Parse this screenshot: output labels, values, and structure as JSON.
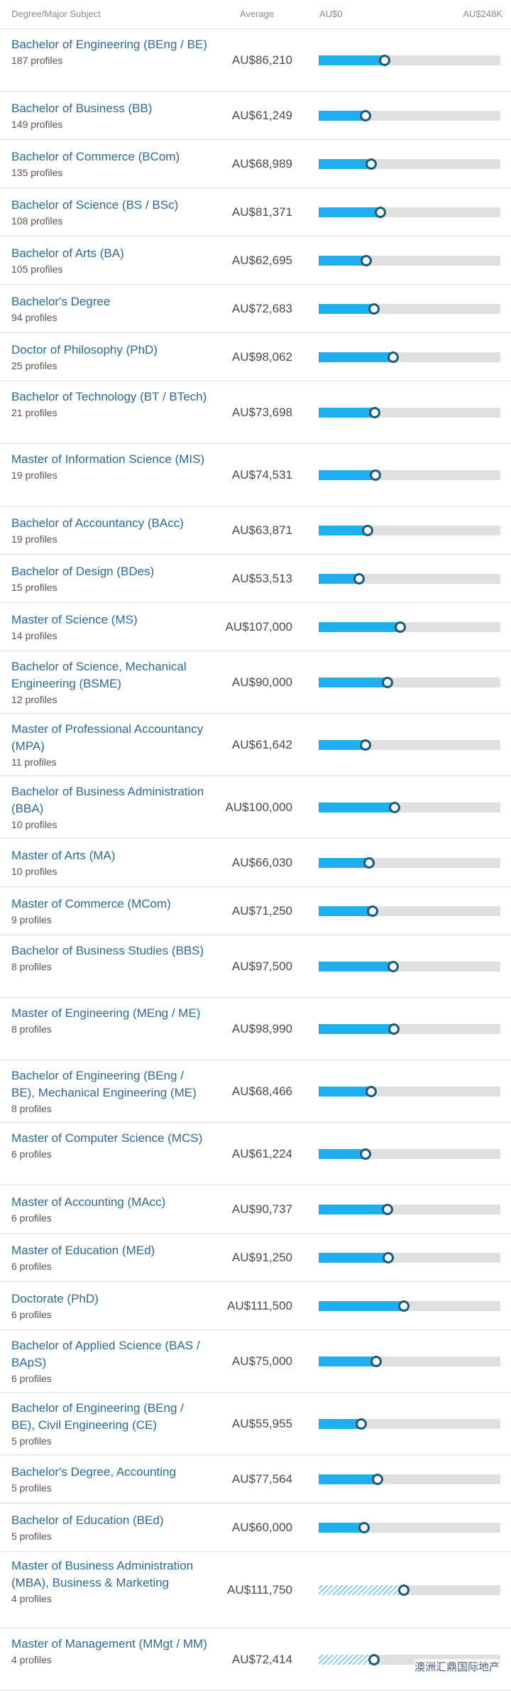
{
  "header": {
    "degree_label": "Degree/Major Subject",
    "average_label": "Average",
    "axis_min_label": "AU$0",
    "axis_max_label": "AU$248K"
  },
  "watermark": "澳洲汇鼎国际地产",
  "chart_data": {
    "type": "bar",
    "xlim": [
      0,
      248000
    ],
    "currency": "AU$",
    "categories": [
      "Bachelor of Engineering (BEng / BE)",
      "Bachelor of Business (BB)",
      "Bachelor of Commerce (BCom)",
      "Bachelor of Science (BS / BSc)",
      "Bachelor of Arts (BA)",
      "Bachelor's Degree",
      "Doctor of Philosophy (PhD)",
      "Bachelor of Technology (BT / BTech)",
      "Master of Information Science (MIS)",
      "Bachelor of Accountancy (BAcc)",
      "Bachelor of Design (BDes)",
      "Master of Science (MS)",
      "Bachelor of Science, Mechanical Engineering (BSME)",
      "Master of Professional Accountancy (MPA)",
      "Bachelor of Business Administration (BBA)",
      "Master of Arts (MA)",
      "Master of Commerce (MCom)",
      "Bachelor of Business Studies (BBS)",
      "Master of Engineering (MEng / ME)",
      "Bachelor of Engineering (BEng / BE), Mechanical Engineering (ME)",
      "Master of Computer Science (MCS)",
      "Master of Accounting (MAcc)",
      "Master of Education (MEd)",
      "Doctorate (PhD)",
      "Bachelor of Applied Science (BAS / BApS)",
      "Bachelor of Engineering (BEng / BE), Civil Engineering (CE)",
      "Bachelor's Degree, Accounting",
      "Bachelor of Education (BEd)",
      "Master of Business Administration (MBA), Business & Marketing",
      "Master of Management (MMgt / MM)"
    ],
    "values": [
      86210,
      61249,
      68989,
      81371,
      62695,
      72683,
      98062,
      73698,
      74531,
      63871,
      53513,
      107000,
      90000,
      61642,
      100000,
      66030,
      71250,
      97500,
      98990,
      68466,
      61224,
      90737,
      91250,
      111500,
      75000,
      55955,
      77564,
      60000,
      111750,
      72414
    ],
    "average_labels": [
      "AU$86,210",
      "AU$61,249",
      "AU$68,989",
      "AU$81,371",
      "AU$62,695",
      "AU$72,683",
      "AU$98,062",
      "AU$73,698",
      "AU$74,531",
      "AU$63,871",
      "AU$53,513",
      "AU$107,000",
      "AU$90,000",
      "AU$61,642",
      "AU$100,000",
      "AU$66,030",
      "AU$71,250",
      "AU$97,500",
      "AU$98,990",
      "AU$68,466",
      "AU$61,224",
      "AU$90,737",
      "AU$91,250",
      "AU$111,500",
      "AU$75,000",
      "AU$55,955",
      "AU$77,564",
      "AU$60,000",
      "AU$111,750",
      "AU$72,414"
    ],
    "profiles": [
      "187 profiles",
      "149 profiles",
      "135 profiles",
      "108 profiles",
      "105 profiles",
      "94 profiles",
      "25 profiles",
      "21 profiles",
      "19 profiles",
      "19 profiles",
      "15 profiles",
      "14 profiles",
      "12 profiles",
      "11 profiles",
      "10 profiles",
      "10 profiles",
      "9 profiles",
      "8 profiles",
      "8 profiles",
      "8 profiles",
      "6 profiles",
      "6 profiles",
      "6 profiles",
      "6 profiles",
      "6 profiles",
      "5 profiles",
      "5 profiles",
      "5 profiles",
      "4 profiles",
      "4 profiles"
    ],
    "bar_style": [
      "solid",
      "solid",
      "solid",
      "solid",
      "solid",
      "solid",
      "solid",
      "solid",
      "solid",
      "solid",
      "solid",
      "solid",
      "solid",
      "solid",
      "solid",
      "solid",
      "solid",
      "solid",
      "solid",
      "solid",
      "solid",
      "solid",
      "solid",
      "solid",
      "solid",
      "solid",
      "solid",
      "solid",
      "hatched",
      "hatched"
    ],
    "colors": {
      "bar": "#1faeef",
      "track": "#e0e0e0",
      "dot_border": "#1a5a7a",
      "label": "#2b6a97"
    }
  }
}
